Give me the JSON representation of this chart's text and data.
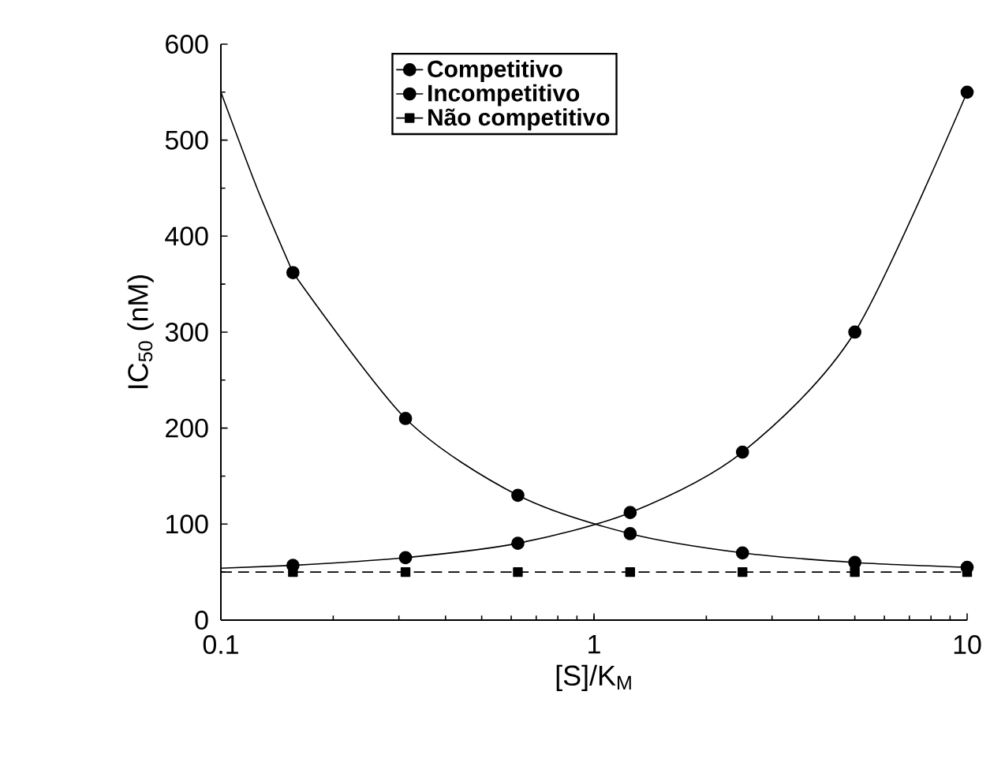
{
  "chart_data": {
    "type": "line",
    "xlabel": "[S]/K$_{M}$",
    "ylabel": "IC$_{50}$ (nM)",
    "log": "x",
    "xlim": [
      0.1,
      10
    ],
    "xticks": [
      0.1,
      1,
      10
    ],
    "ylim": [
      0,
      600
    ],
    "yticks": [
      0,
      100,
      200,
      300,
      400,
      500,
      600
    ],
    "legend": "top",
    "grid": false,
    "series": [
      {
        "name": "Competitivo",
        "color": "#000000",
        "marker": "circle",
        "line_style": "solid",
        "x": [
          0.156,
          0.3125,
          0.625,
          1.25,
          2.5,
          5,
          10
        ],
        "values": [
          57,
          65,
          80,
          112,
          175,
          300,
          550
        ]
      },
      {
        "name": "Incompetitivo",
        "color": "#000000",
        "marker": "circle",
        "line_style": "solid",
        "x": [
          0.156,
          0.3125,
          0.625,
          1.25,
          2.5,
          5,
          10
        ],
        "values": [
          362,
          210,
          130,
          90,
          70,
          60,
          55
        ]
      },
      {
        "name": "Não competitivo",
        "color": "#000000",
        "marker": "square",
        "line_style": "dashed",
        "x": [
          0.156,
          0.3125,
          0.625,
          1.25,
          2.5,
          5,
          10
        ],
        "values": [
          50,
          50,
          50,
          50,
          50,
          50,
          50
        ]
      },
      {
        "type": "line",
        "color": "#000000",
        "marker": "none",
        "line_style": "solid",
        "x": [
          0.1,
          0.156
        ],
        "values": [
          54,
          57
        ]
      },
      {
        "type": "line",
        "color": "#000000",
        "marker": "none",
        "line_style": "solid",
        "x": [
          0.1,
          0.125,
          0.156
        ],
        "values": [
          550,
          450,
          362
        ]
      },
      {
        "type": "line",
        "color": "#000000",
        "marker": "none",
        "line_style": "dashed",
        "x": [
          0.1,
          0.156
        ],
        "values": [
          50,
          50
        ]
      }
    ]
  }
}
